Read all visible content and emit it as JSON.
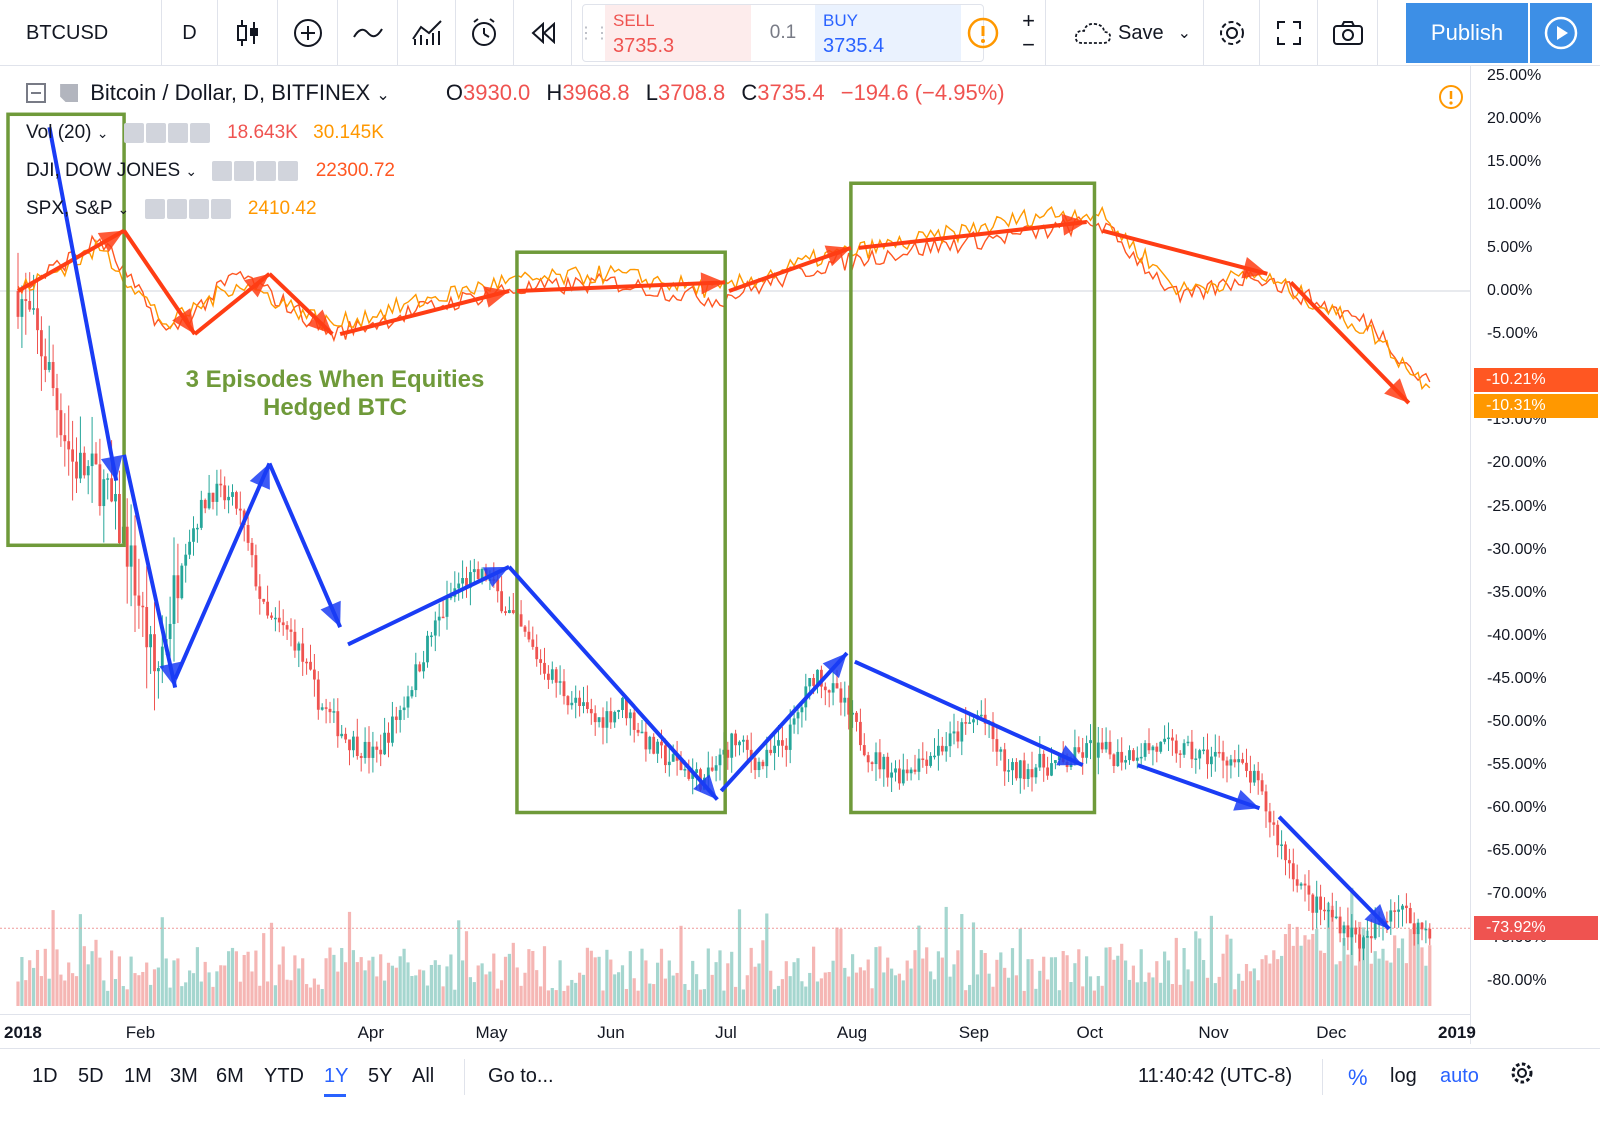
{
  "toolbar": {
    "symbol": "BTCUSD",
    "interval": "D",
    "sell_label": "SELL",
    "sell_value": "3735.3",
    "spread": "0.1",
    "buy_label": "BUY",
    "buy_value": "3735.4",
    "save_label": "Save",
    "publish_label": "Publish"
  },
  "legend": {
    "title": "Bitcoin / Dollar, D, BITFINEX",
    "o_label": "O",
    "o_value": "3930.0",
    "h_label": "H",
    "h_value": "3968.8",
    "l_label": "L",
    "l_value": "3708.8",
    "c_label": "C",
    "c_value": "3735.4",
    "change": "−194.6 (−4.95%)",
    "indicators": [
      {
        "name": "Vol (20)",
        "values": [
          "18.643K",
          "30.145K"
        ]
      },
      {
        "name": "DJI, DOW JONES",
        "values": [
          "22300.72"
        ]
      },
      {
        "name": "SPX, S&P",
        "values": [
          "2410.42"
        ]
      }
    ]
  },
  "annotation": {
    "line1": "3 Episodes When Equities",
    "line2": "Hedged BTC"
  },
  "price_tags": [
    "-10.21%",
    "-10.31%",
    "-73.92%"
  ],
  "bottom_bar": {
    "ranges": [
      "1D",
      "5D",
      "1M",
      "3M",
      "6M",
      "YTD",
      "1Y",
      "5Y",
      "All"
    ],
    "active_range": "1Y",
    "goto": "Go to...",
    "clock": "11:40:42 (UTC-8)",
    "percent": "%",
    "log": "log",
    "auto": "auto"
  },
  "colors": {
    "btc_up": "#26a69a",
    "btc_down": "#ef5350",
    "dji": "#ff5722",
    "spx": "#ff9800",
    "trend_blue": "#1a3cf5",
    "trend_red": "#ff3d14",
    "box_green": "#6f9a3a"
  },
  "chart_data": {
    "type": "line",
    "title": "",
    "x_ticks": [
      "2018",
      "Feb",
      "Apr",
      "May",
      "Jun",
      "Jul",
      "Aug",
      "Sep",
      "Oct",
      "Nov",
      "Dec",
      "2019"
    ],
    "y_ticks": [
      "25.00%",
      "20.00%",
      "15.00%",
      "10.00%",
      "5.00%",
      "0.00%",
      "-5.00%",
      "-10.00%",
      "-15.00%",
      "-20.00%",
      "-25.00%",
      "-30.00%",
      "-35.00%",
      "-40.00%",
      "-45.00%",
      "-50.00%",
      "-55.00%",
      "-60.00%",
      "-65.00%",
      "-70.00%",
      "-75.00%",
      "-80.00%"
    ],
    "ylim": [
      -82,
      25
    ],
    "series": [
      {
        "name": "BTCUSD",
        "color": "#ef5350",
        "x": [
          "2018-01-01",
          "2018-01-08",
          "2018-01-15",
          "2018-01-22",
          "2018-01-29",
          "2018-02-05",
          "2018-02-12",
          "2018-02-19",
          "2018-02-26",
          "2018-03-05",
          "2018-03-12",
          "2018-03-19",
          "2018-03-26",
          "2018-04-02",
          "2018-04-09",
          "2018-04-16",
          "2018-04-23",
          "2018-04-30",
          "2018-05-07",
          "2018-05-14",
          "2018-05-21",
          "2018-05-28",
          "2018-06-04",
          "2018-06-11",
          "2018-06-18",
          "2018-06-25",
          "2018-07-02",
          "2018-07-09",
          "2018-07-16",
          "2018-07-23",
          "2018-07-30",
          "2018-08-06",
          "2018-08-13",
          "2018-08-20",
          "2018-08-27",
          "2018-09-03",
          "2018-09-10",
          "2018-09-17",
          "2018-09-24",
          "2018-10-01",
          "2018-10-08",
          "2018-10-15",
          "2018-10-22",
          "2018-10-29",
          "2018-11-05",
          "2018-11-12",
          "2018-11-19",
          "2018-11-26",
          "2018-12-03",
          "2018-12-10",
          "2018-12-17",
          "2018-12-24"
        ],
        "y": [
          0,
          -8,
          -20,
          -22,
          -30,
          -45,
          -30,
          -23,
          -25,
          -38,
          -40,
          -48,
          -52,
          -54,
          -48,
          -40,
          -34,
          -33,
          -38,
          -43,
          -47,
          -50,
          -48,
          -53,
          -55,
          -57,
          -52,
          -55,
          -52,
          -44,
          -48,
          -54,
          -56,
          -54,
          -52,
          -49,
          -56,
          -55,
          -55,
          -53,
          -54,
          -53,
          -53,
          -54,
          -54,
          -57,
          -65,
          -71,
          -73,
          -76,
          -71,
          -74
        ]
      },
      {
        "name": "DJI",
        "color": "#ff5722",
        "x": [
          "2018-01-01",
          "2018-01-22",
          "2018-02-08",
          "2018-02-26",
          "2018-03-22",
          "2018-04-15",
          "2018-05-04",
          "2018-06-01",
          "2018-06-28",
          "2018-07-25",
          "2018-08-20",
          "2018-09-20",
          "2018-10-03",
          "2018-10-24",
          "2018-11-12",
          "2018-11-26",
          "2018-12-12",
          "2018-12-24"
        ],
        "y": [
          0,
          6,
          -5,
          2,
          -5,
          -2,
          0,
          1,
          -1,
          3,
          5,
          7,
          8,
          -1,
          2,
          -1,
          -4,
          -10.21
        ]
      },
      {
        "name": "SPX",
        "color": "#ff9800",
        "x": [
          "2018-01-01",
          "2018-01-22",
          "2018-02-08",
          "2018-02-26",
          "2018-03-22",
          "2018-04-15",
          "2018-05-04",
          "2018-06-01",
          "2018-06-28",
          "2018-07-25",
          "2018-08-20",
          "2018-09-20",
          "2018-10-03",
          "2018-10-24",
          "2018-11-12",
          "2018-11-26",
          "2018-12-12",
          "2018-12-24"
        ],
        "y": [
          0,
          5,
          -4,
          1,
          -4,
          -1,
          1,
          2,
          0,
          4,
          6,
          9,
          9,
          0,
          2,
          -1,
          -5,
          -10.31
        ]
      }
    ]
  }
}
